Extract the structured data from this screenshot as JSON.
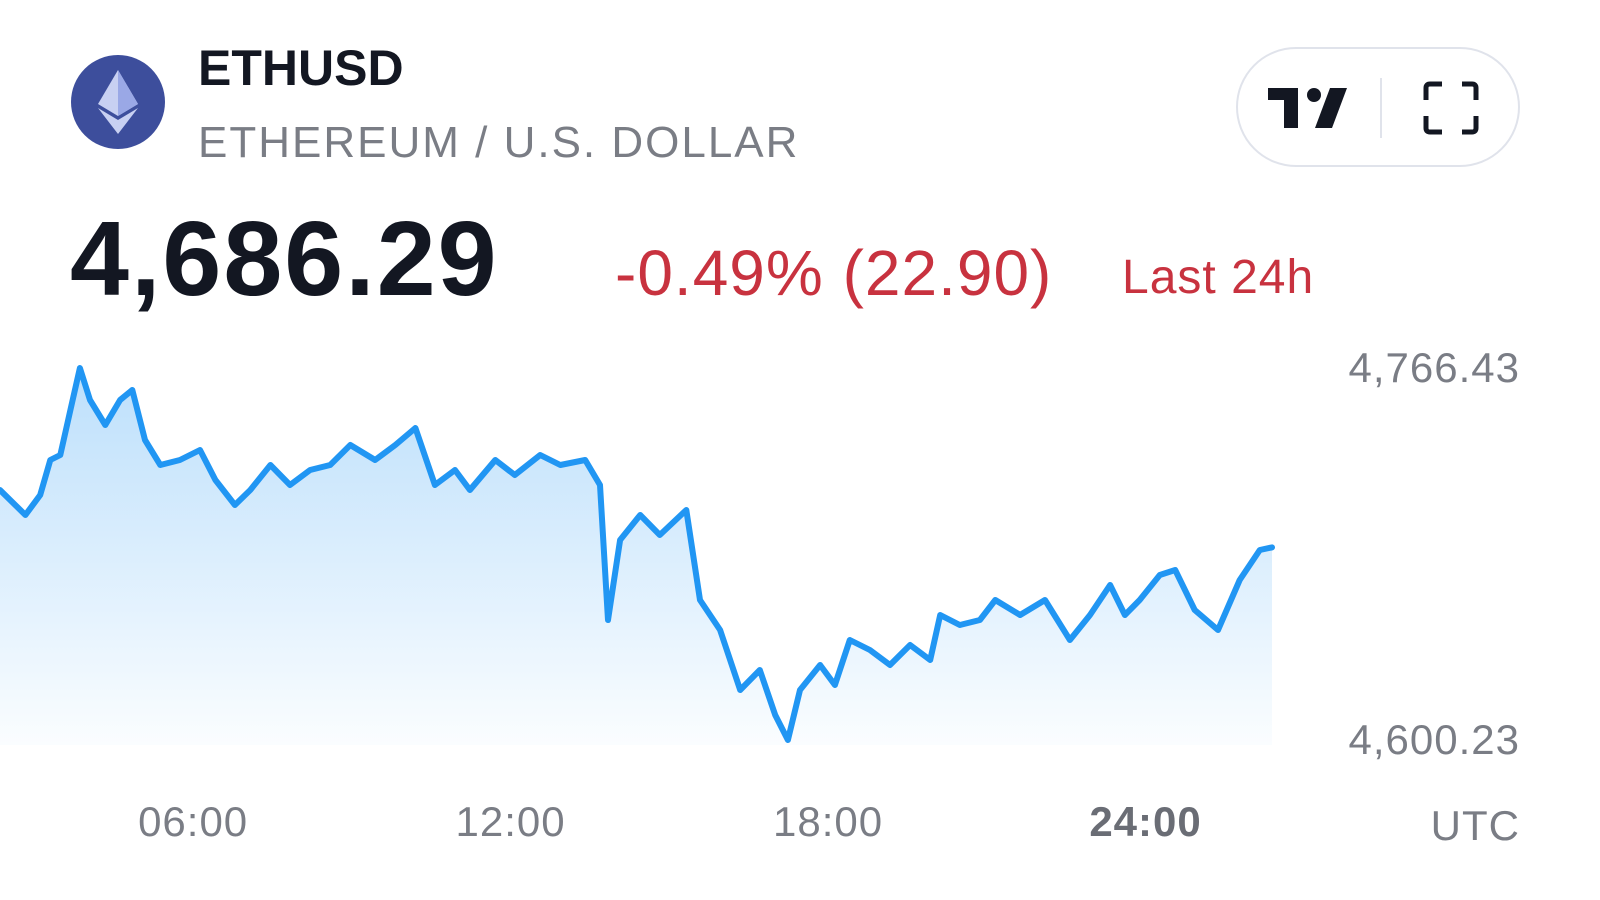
{
  "chart_data": {
    "type": "line",
    "title": "ETHUSD",
    "subtitle": "ETHEREUM / U.S. DOLLAR",
    "price": "4,686.29",
    "change": "-0.49% (22.90)",
    "period": "Last 24h",
    "timezone": "UTC",
    "color": "#2196f3",
    "change_color": "#c8323f",
    "x": [
      2.35,
      2.83,
      3.11,
      3.3,
      3.49,
      3.68,
      3.86,
      4.05,
      4.34,
      4.62,
      4.85,
      5.09,
      5.38,
      5.75,
      6.13,
      6.42,
      6.79,
      7.08,
      7.46,
      7.83,
      8.21,
      8.59,
      8.97,
      9.44,
      9.82,
      10.2,
      10.57,
      10.95,
      11.23,
      11.71,
      12.08,
      12.56,
      12.94,
      13.41,
      13.69,
      13.84,
      14.07,
      14.45,
      14.82,
      15.32,
      15.58,
      15.96,
      16.34,
      16.71,
      17.0,
      17.24,
      17.47,
      17.85,
      18.13,
      18.41,
      18.79,
      19.17,
      19.55,
      19.93,
      20.12,
      20.49,
      20.87,
      21.16,
      21.63,
      22.1,
      22.57,
      22.95,
      23.33,
      23.61,
      23.89,
      24.27,
      24.56,
      24.93,
      25.37,
      25.78,
      26.16,
      26.39
    ],
    "values": [
      4711.92,
      4700.75,
      4709.69,
      4725.32,
      4727.56,
      4747.66,
      4766.43,
      4752.13,
      4740.96,
      4752.13,
      4756.6,
      4734.26,
      4723.09,
      4725.32,
      4729.79,
      4716.39,
      4705.22,
      4711.92,
      4723.09,
      4714.15,
      4720.86,
      4723.09,
      4732.03,
      4725.32,
      4732.03,
      4739.62,
      4714.15,
      4720.86,
      4711.92,
      4725.32,
      4718.62,
      4727.56,
      4723.09,
      4725.32,
      4714.15,
      4653.84,
      4689.58,
      4700.75,
      4691.81,
      4702.98,
      4662.77,
      4649.37,
      4622.56,
      4631.5,
      4611.39,
      4600.23,
      4622.56,
      4633.73,
      4624.79,
      4644.9,
      4640.43,
      4633.73,
      4642.67,
      4635.96,
      4656.07,
      4651.6,
      4653.84,
      4662.77,
      4656.07,
      4662.77,
      4644.9,
      4656.07,
      4669.47,
      4656.07,
      4662.77,
      4673.94,
      4676.18,
      4658.3,
      4649.37,
      4671.71,
      4685.11,
      4686.29
    ],
    "xlim": [
      2.35,
      26.39
    ],
    "xticks": [
      {
        "value": 6,
        "label": "06:00"
      },
      {
        "value": 12,
        "label": "12:00"
      },
      {
        "value": 18,
        "label": "18:00"
      },
      {
        "value": 24,
        "label": "24:00"
      }
    ],
    "ylim": [
      4600.23,
      4766.43
    ],
    "yticks": [
      {
        "value": 4766.43,
        "label": "4,766.43"
      },
      {
        "value": 4600.23,
        "label": "4,600.23"
      }
    ],
    "grid": false
  }
}
